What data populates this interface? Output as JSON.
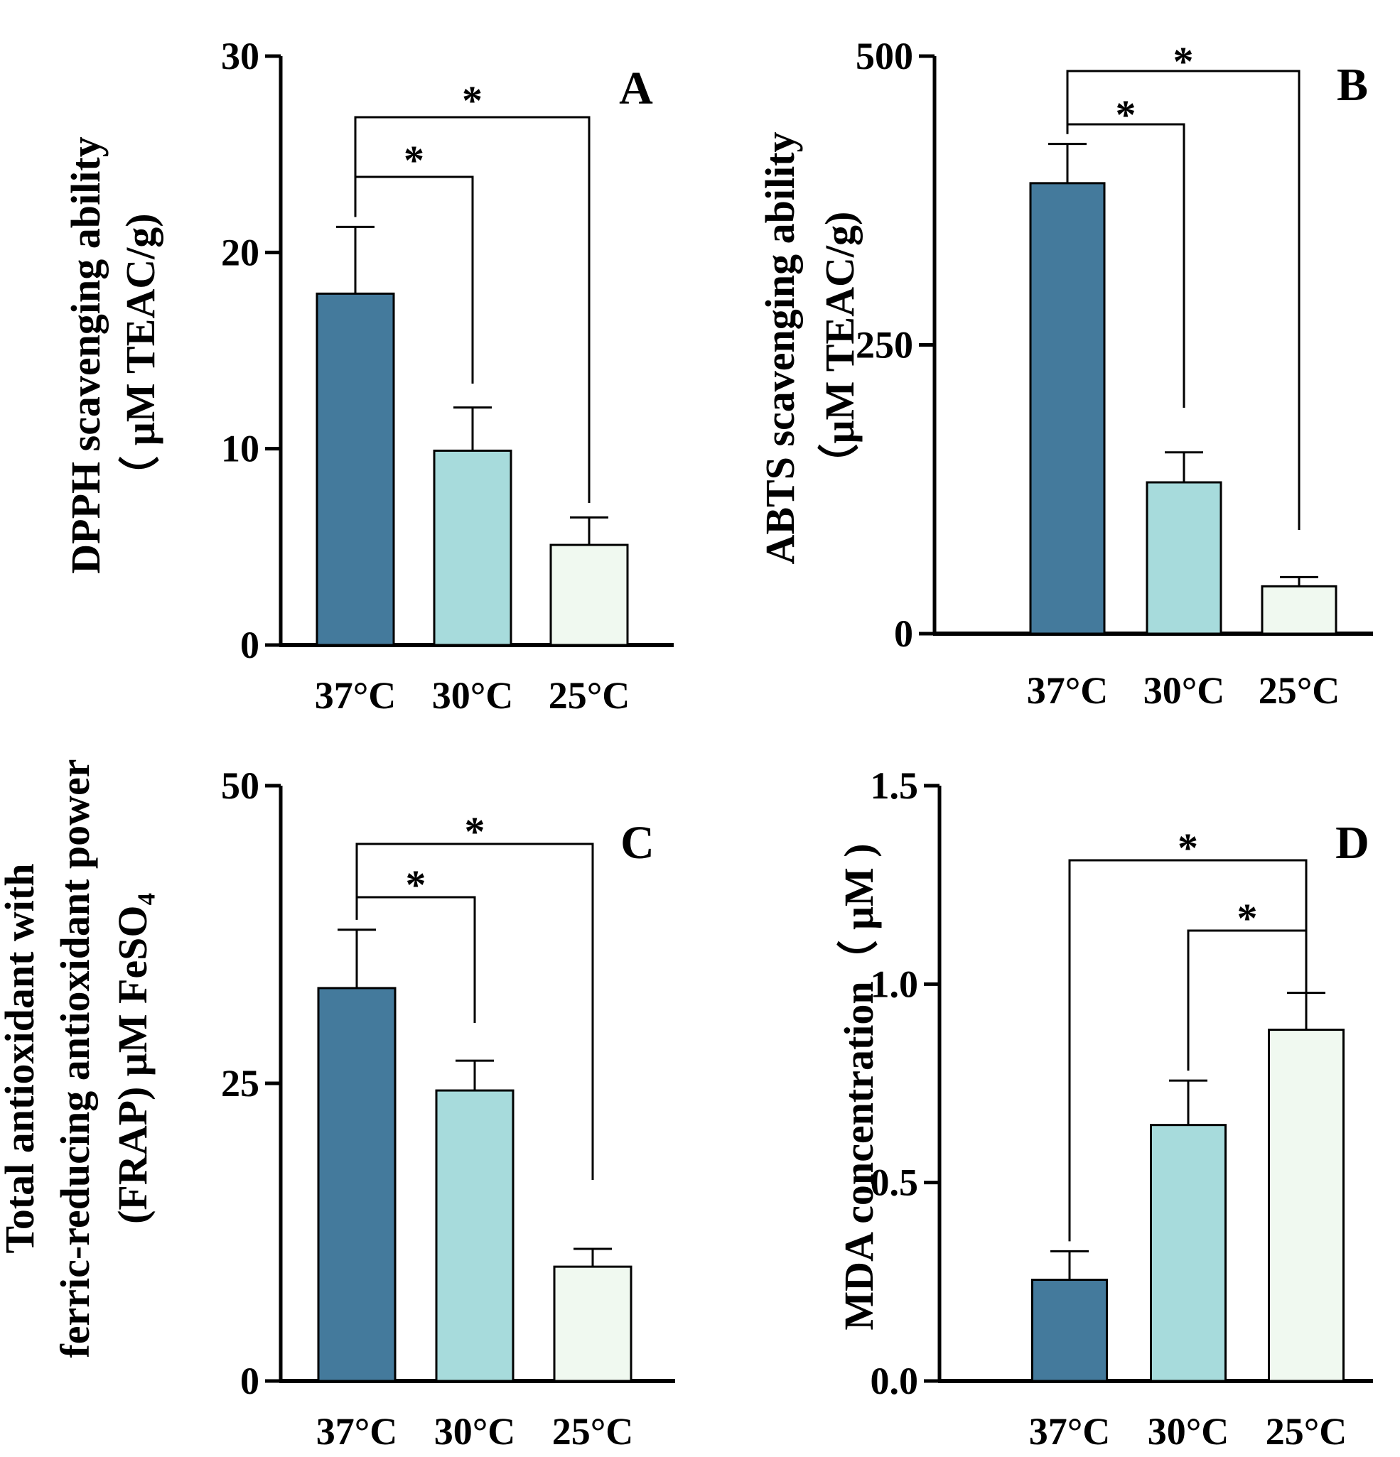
{
  "chart_data": [
    {
      "panel": "A",
      "type": "bar",
      "categories": [
        "37°C",
        "30°C",
        "25°C"
      ],
      "values": [
        17.9,
        9.9,
        5.1
      ],
      "errors": [
        3.4,
        2.2,
        1.4
      ],
      "colors": [
        "#447A9C",
        "#A7DBDC",
        "#F0F9F0"
      ],
      "ylim": [
        0,
        30
      ],
      "yticks": [
        0,
        10,
        20,
        30
      ],
      "ytick_labels": [
        "0",
        "10",
        "20",
        "30"
      ],
      "ylabel_lines": [
        "DPPH scavenging ability",
        "（ μM TEAC/g)"
      ],
      "significance": [
        {
          "from": 0,
          "to": 1,
          "label": "*"
        },
        {
          "from": 0,
          "to": 2,
          "label": "*"
        }
      ]
    },
    {
      "panel": "B",
      "type": "bar",
      "categories": [
        "37°C",
        "30°C",
        "25°C"
      ],
      "values": [
        390,
        131,
        41
      ],
      "errors": [
        34,
        26,
        8
      ],
      "colors": [
        "#447A9C",
        "#A7DBDC",
        "#F0F9F0"
      ],
      "ylim": [
        0,
        500
      ],
      "yticks": [
        0,
        250,
        500
      ],
      "ytick_labels": [
        "0",
        "250",
        "500"
      ],
      "ylabel_lines": [
        "ABTS scavenging ability",
        "（μM TEAC/g)"
      ],
      "significance": [
        {
          "from": 0,
          "to": 1,
          "label": "*"
        },
        {
          "from": 0,
          "to": 2,
          "label": "*"
        }
      ]
    },
    {
      "panel": "C",
      "type": "bar",
      "categories": [
        "37°C",
        "30°C",
        "25°C"
      ],
      "values": [
        33,
        24.4,
        9.6
      ],
      "errors": [
        4.9,
        2.5,
        1.5
      ],
      "colors": [
        "#447A9C",
        "#A7DBDC",
        "#F0F9F0"
      ],
      "ylim": [
        0,
        50
      ],
      "yticks": [
        0,
        25,
        50
      ],
      "ytick_labels": [
        "0",
        "25",
        "50"
      ],
      "ylabel_lines": [
        "Total antioxidant  with",
        "ferric-reducing antioxidant power",
        "(FRAP) μM FeSO₄"
      ],
      "significance": [
        {
          "from": 0,
          "to": 1,
          "label": "*"
        },
        {
          "from": 0,
          "to": 2,
          "label": "*"
        }
      ]
    },
    {
      "panel": "D",
      "type": "bar",
      "categories": [
        "37°C",
        "30°C",
        "25°C"
      ],
      "values": [
        0.255,
        0.645,
        0.885
      ],
      "errors": [
        0.072,
        0.112,
        0.093
      ],
      "colors": [
        "#447A9C",
        "#A7DBDC",
        "#F0F9F0"
      ],
      "ylim": [
        0,
        1.5
      ],
      "yticks": [
        0,
        0.5,
        1.0,
        1.5
      ],
      "ytick_labels": [
        "0.0",
        "0.5",
        "1.0",
        "1.5"
      ],
      "ylabel_lines": [
        "MDA concentration（ μM )"
      ],
      "significance": [
        {
          "from": 1,
          "to": 2,
          "label": "*"
        },
        {
          "from": 0,
          "to": 2,
          "label": "*"
        }
      ]
    }
  ]
}
